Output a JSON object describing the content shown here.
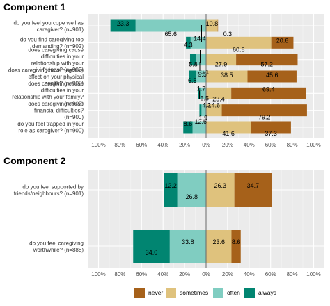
{
  "legend": [
    {
      "key": "never",
      "label": "never",
      "color": "#a6611a"
    },
    {
      "key": "sometimes",
      "label": "sometimes",
      "color": "#dfc27d"
    },
    {
      "key": "often",
      "label": "often",
      "color": "#80cdc1"
    },
    {
      "key": "always",
      "label": "always",
      "color": "#018571"
    }
  ],
  "chart_data": [
    {
      "type": "bar",
      "title": "Component 1",
      "orientation": "horizontal-diverging",
      "xlim": [
        -100,
        100
      ],
      "x_ticks": [
        "100%",
        "80%",
        "60%",
        "40%",
        "20%",
        "0%",
        "20%",
        "40%",
        "60%",
        "80%",
        "100%"
      ],
      "grid": true,
      "categories": [
        "do you feel you cope well as caregiver? (n=901)",
        "do you find caregiving too demanding? (n=902)",
        "does caregiving cause difficulties in your relationship with your friends? (n=902)",
        "does caregiving have negative effect on your physical health? (n=902)",
        "does caregiving cause difficulties in your relationship with your family? (n=902)",
        "does caregiving cause financial difficulties? (n=900)",
        "do you feel trapped in your role as caregiver? (n=900)"
      ],
      "series": [
        {
          "name": "always",
          "values": [
            23.3,
            4.3,
            5.8,
            6.5,
            1.7,
            1.9,
            8.6
          ]
        },
        {
          "name": "often",
          "values": [
            65.6,
            14.4,
            9.1,
            9.5,
            5.5,
            4.3,
            12.6
          ]
        },
        {
          "name": "sometimes",
          "values": [
            10.8,
            60.6,
            27.9,
            38.5,
            23.4,
            14.6,
            41.6
          ]
        },
        {
          "name": "never",
          "values": [
            0.3,
            20.6,
            57.2,
            45.6,
            69.4,
            79.2,
            37.3
          ]
        }
      ]
    },
    {
      "type": "bar",
      "title": "Component 2",
      "orientation": "horizontal-diverging",
      "xlim": [
        -100,
        100
      ],
      "x_ticks": [
        "100%",
        "80%",
        "60%",
        "40%",
        "20%",
        "0%",
        "20%",
        "40%",
        "60%",
        "80%",
        "100%"
      ],
      "grid": true,
      "categories": [
        "do you feel supported by friends/neighbours? (n=901)",
        "do you feel caregiving worthwhile? (n=888)"
      ],
      "series": [
        {
          "name": "always",
          "values": [
            12.2,
            34.0
          ]
        },
        {
          "name": "often",
          "values": [
            26.8,
            33.8
          ]
        },
        {
          "name": "sometimes",
          "values": [
            26.3,
            23.6
          ]
        },
        {
          "name": "never",
          "values": [
            34.7,
            8.6
          ]
        }
      ]
    }
  ]
}
